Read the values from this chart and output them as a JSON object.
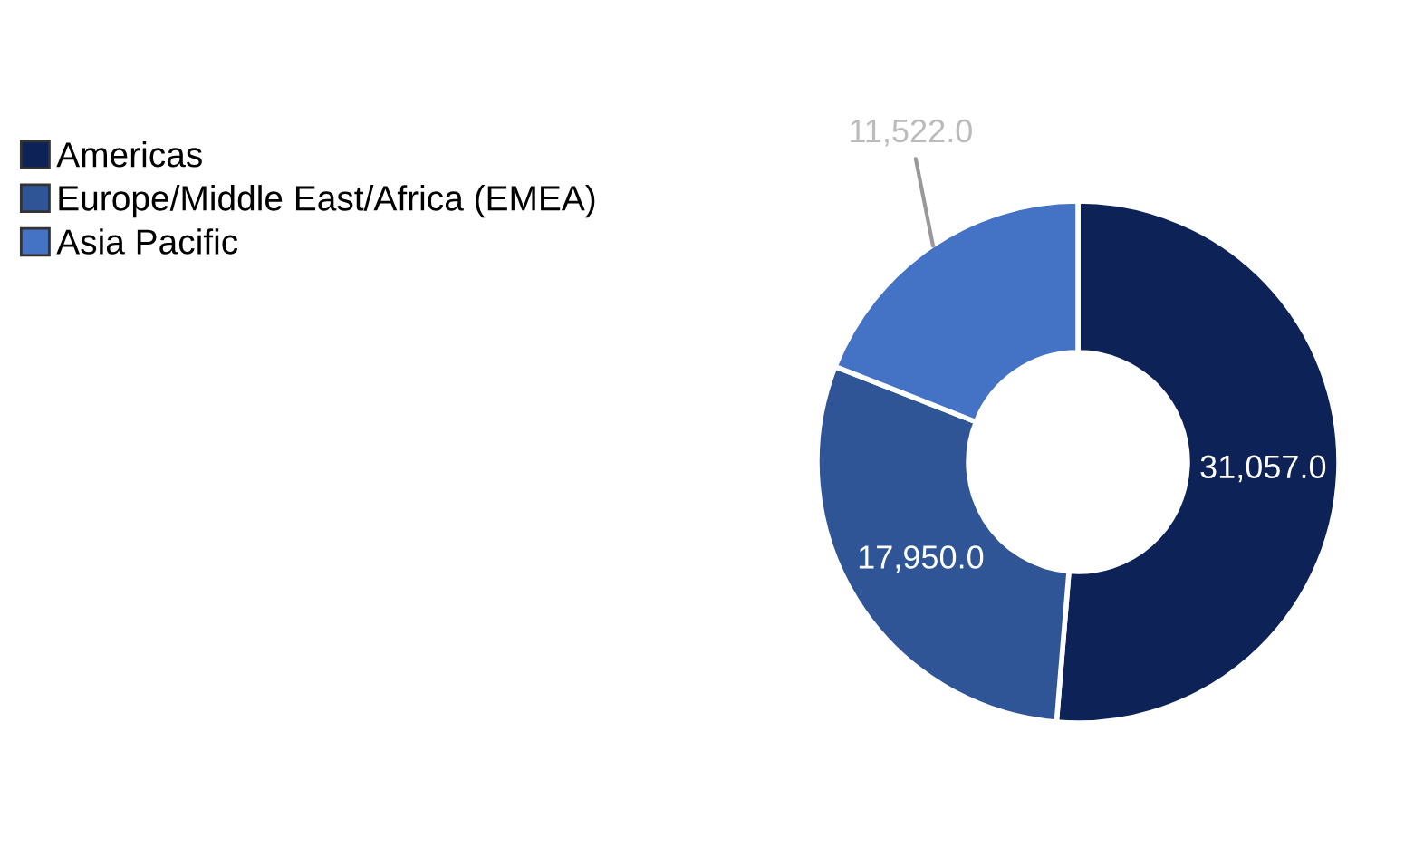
{
  "chart_data": {
    "type": "donut",
    "categories": [
      "Americas",
      "Europe/Middle East/Africa (EMEA)",
      "Asia Pacific"
    ],
    "values": [
      31057.0,
      17950.0,
      11522.0
    ],
    "colors": [
      "#0d2257",
      "#2f5597",
      "#4472c4"
    ],
    "value_labels": [
      "31,057.0",
      "17,950.0",
      "11,522.0"
    ],
    "legend": "left"
  }
}
